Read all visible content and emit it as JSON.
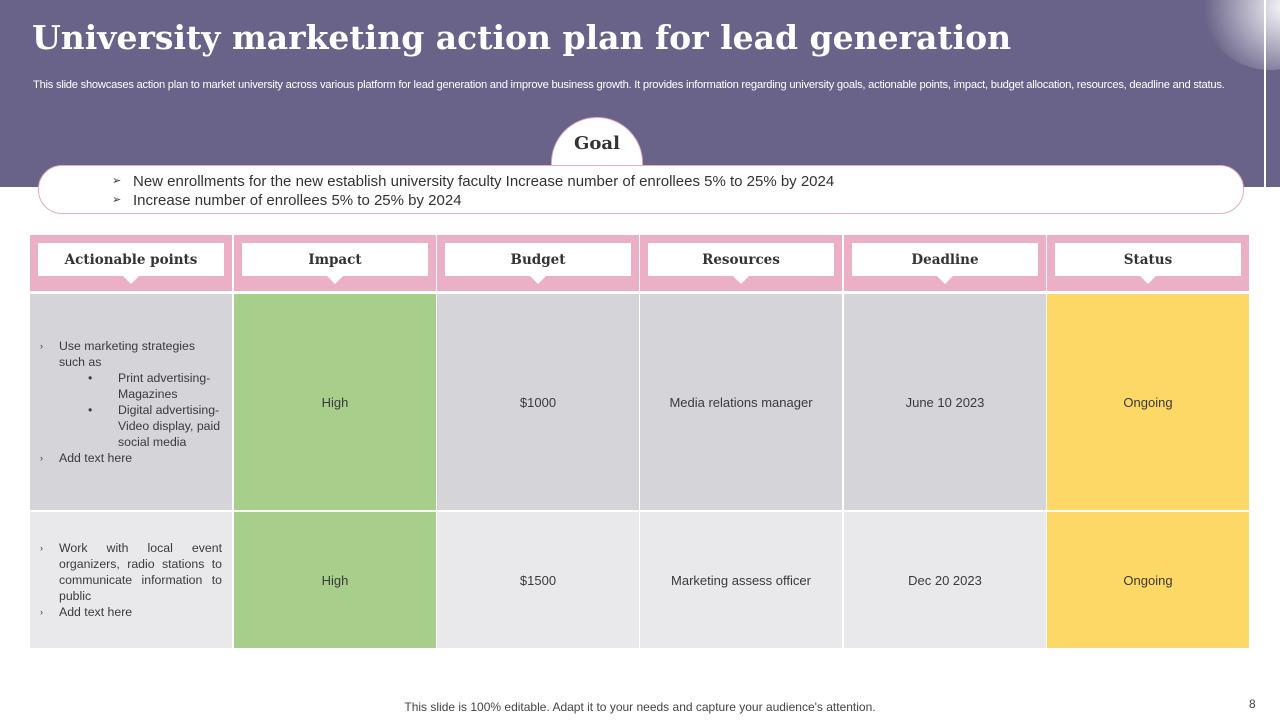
{
  "header": {
    "title": "University marketing action plan for lead generation",
    "subtitle": "This slide showcases action plan to market university across various platform for lead generation and improve business growth. It provides information regarding university goals, actionable points, impact, budget allocation, resources, deadline and status."
  },
  "goal": {
    "label": "Goal",
    "items": [
      "New enrollments for the new establish university faculty Increase number of enrollees 5% to 25% by 2024",
      "Increase number of enrollees 5% to 25% by 2024"
    ]
  },
  "table": {
    "headers": [
      "Actionable points",
      "Impact",
      "Budget",
      "Resources",
      "Deadline",
      "Status"
    ],
    "rows": [
      {
        "points": {
          "first": "Use marketing strategies such as",
          "sub": [
            "Print advertising- Magazines",
            "Digital advertising- Video display, paid social media"
          ],
          "last": "Add text here"
        },
        "impact": "High",
        "budget": "$1000",
        "resources": "Media relations manager",
        "deadline": "June 10 2023",
        "status": "Ongoing"
      },
      {
        "points": {
          "first": "Work with local event organizers, radio stations to communicate information to public",
          "last": "Add text here"
        },
        "impact": "High",
        "budget": "$1500",
        "resources": "Marketing assess officer",
        "deadline": "Dec 20 2023",
        "status": "Ongoing"
      }
    ]
  },
  "footer": {
    "note": "This slide is 100% editable. Adapt it to your needs and capture your audience's attention.",
    "page_number": "8"
  },
  "colors": {
    "banner": "#6a6389",
    "header_pink": "#ebb0c6",
    "impact_green": "#a7cf8b",
    "status_yellow": "#fed866",
    "row_gray_dark": "#d5d4d9",
    "row_gray_light": "#e9e9ec"
  },
  "icons": {
    "bullet_arrow": "›",
    "bullet_small_arrow": "➢",
    "bullet_dot": "•"
  }
}
